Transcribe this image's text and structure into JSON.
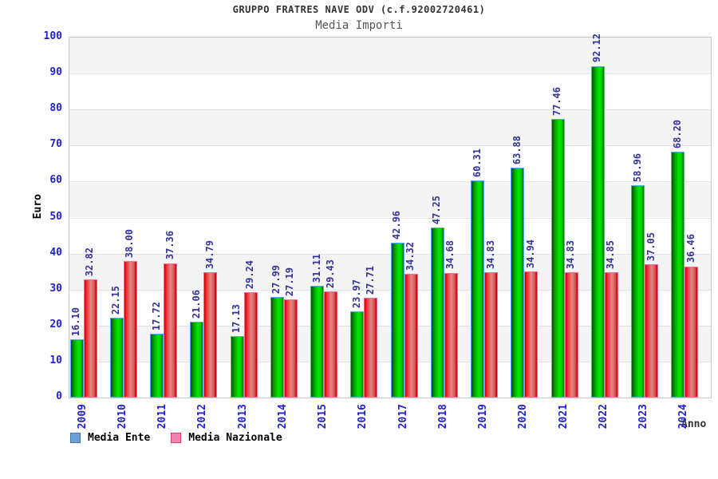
{
  "colors": {
    "tick_label": "#2222cc",
    "year_label": "#2222cc",
    "value_label": "#333399",
    "band_gray": "#f4f4f4",
    "grid_line": "#e2e2e2",
    "plot_border": "#c8c8c8",
    "title_color": "#333333",
    "subtitle_color": "#555555",
    "ente_border": "#55aaff",
    "ente_gradient": [
      "#005500",
      "#00aa00",
      "#00e800",
      "#00cc00",
      "#007000"
    ],
    "naz_border": "#ff6699",
    "naz_gradient": [
      "#c80000",
      "#ee2222",
      "#e08888",
      "#dd5555",
      "#bb0000"
    ],
    "legend_ente_fill": "#6f9fd8",
    "legend_ente_border": "#4477aa",
    "legend_naz_fill": "#ee82b0",
    "legend_naz_border": "#cc4477"
  },
  "chart_data": {
    "type": "bar",
    "title": "GRUPPO FRATRES NAVE ODV (c.f.92002720461)",
    "subtitle": "Media Importi",
    "xlabel": "Anno",
    "ylabel": "Euro",
    "categories": [
      "2009",
      "2010",
      "2011",
      "2012",
      "2013",
      "2014",
      "2015",
      "2016",
      "2017",
      "2018",
      "2019",
      "2020",
      "2021",
      "2022",
      "2023",
      "2024"
    ],
    "series": [
      {
        "name": "Media Ente",
        "values": [
          16.1,
          22.15,
          17.72,
          21.06,
          17.13,
          27.99,
          31.11,
          23.97,
          42.96,
          47.25,
          60.31,
          63.88,
          77.46,
          92.12,
          58.96,
          68.2
        ]
      },
      {
        "name": "Media Nazionale",
        "values": [
          32.82,
          38.0,
          37.36,
          34.79,
          29.24,
          27.19,
          29.43,
          27.71,
          34.32,
          34.68,
          34.83,
          34.94,
          34.83,
          34.85,
          37.05,
          36.46
        ]
      }
    ],
    "ylim": [
      0,
      100
    ],
    "ytick_step": 10,
    "grid": "horizontal-bands-alternating",
    "legend_position": "bottom-left",
    "value_labels": "rotated-90-above-bars"
  }
}
